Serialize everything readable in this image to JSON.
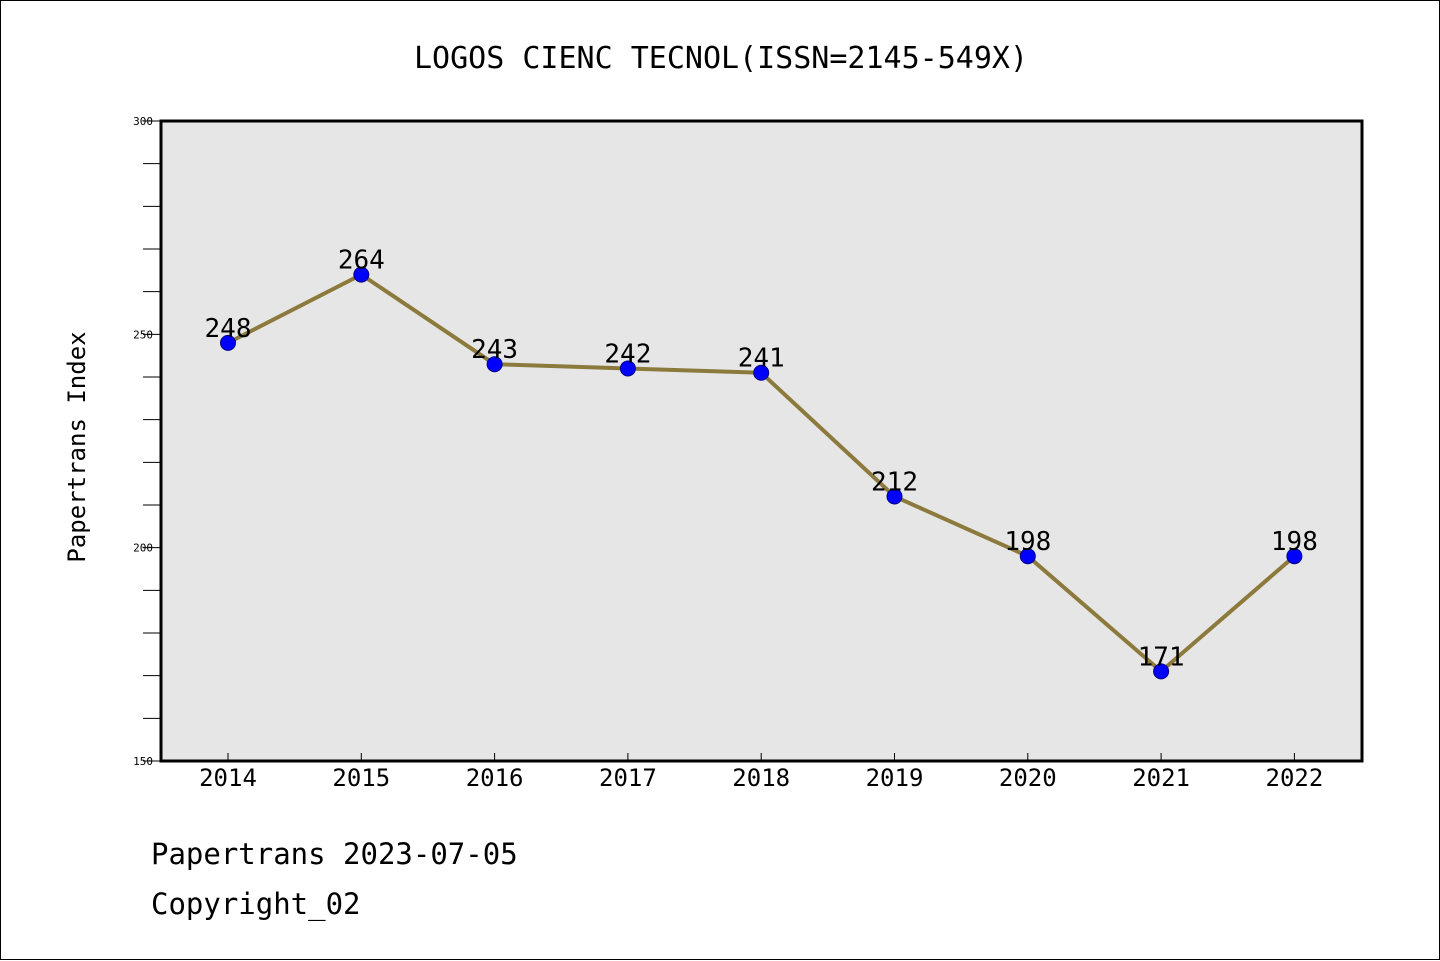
{
  "colors": {
    "background": "#ffffff",
    "plot_background": "#e6e6e6",
    "line": "#8c7a3c",
    "marker_fill": "#0000ff",
    "marker_edge": "#00008b",
    "text": "#000000"
  },
  "chart_data": {
    "type": "line",
    "title": "LOGOS CIENC TECNOL(ISSN=2145-549X)",
    "xlabel": "",
    "ylabel": "Papertrans Index",
    "categories": [
      "2014",
      "2015",
      "2016",
      "2017",
      "2018",
      "2019",
      "2020",
      "2021",
      "2022"
    ],
    "series": [
      {
        "values": [
          248,
          264,
          243,
          242,
          241,
          212,
          198,
          171,
          198
        ]
      }
    ],
    "ylim": [
      150,
      300
    ],
    "yticks": [
      150,
      200,
      250,
      300
    ],
    "grid": false,
    "legend": "none",
    "data_labels": true
  },
  "footer": {
    "line1": "Papertrans 2023-07-05",
    "line2": "Copyright_02"
  }
}
